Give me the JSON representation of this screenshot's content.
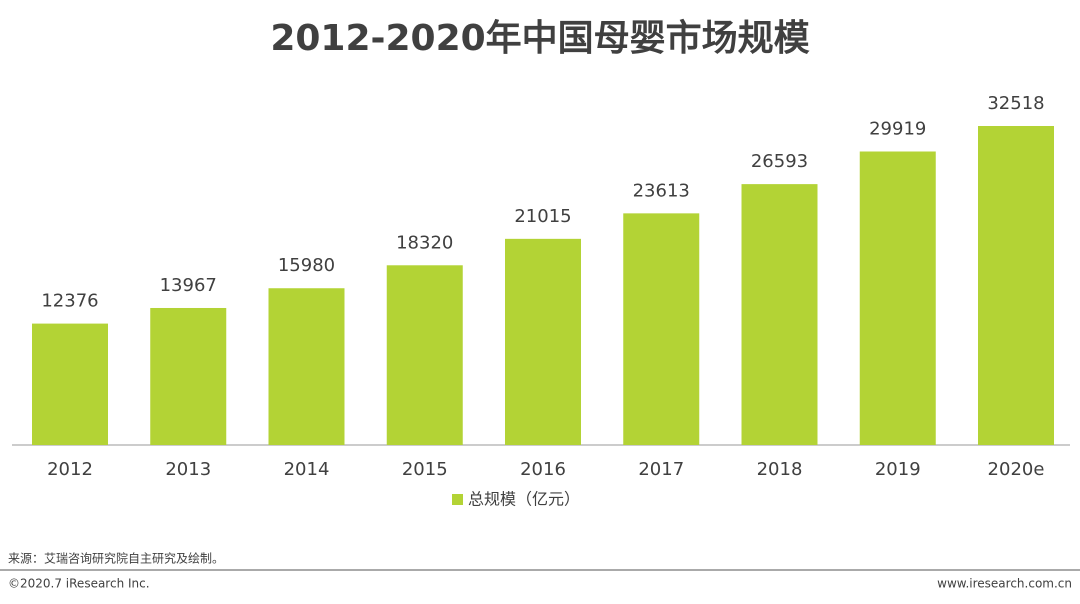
{
  "chart_data": {
    "type": "bar",
    "title": "2012-2020年中国母婴市场规模",
    "categories": [
      "2012",
      "2013",
      "2014",
      "2015",
      "2016",
      "2017",
      "2018",
      "2019",
      "2020e"
    ],
    "series": [
      {
        "name": "总规模（亿元）",
        "color": "#b3d335",
        "values": [
          12376,
          13967,
          15980,
          18320,
          21015,
          23613,
          26593,
          29919,
          32518
        ]
      }
    ]
  },
  "source": "来源：艾瑞咨询研究院自主研究及绘制。",
  "footer": {
    "left": "©2020.7 iResearch Inc.",
    "right": "www.iresearch.com.cn"
  }
}
